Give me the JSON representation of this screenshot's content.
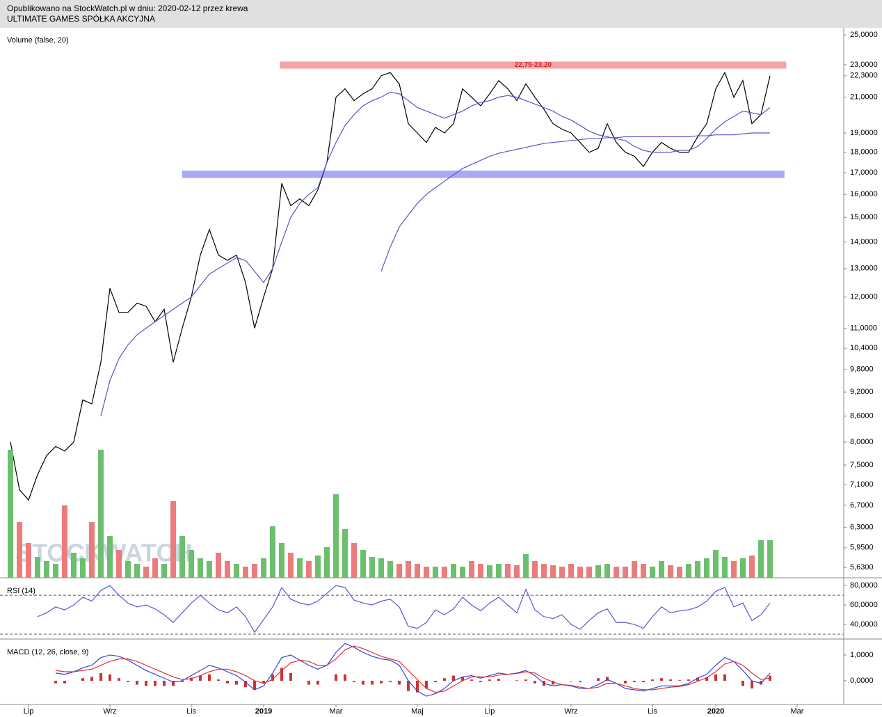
{
  "header": {
    "published": "Opublikowano na StockWatch.pl w dniu: 2020-02-12 przez krewa",
    "company": "ULTIMATE GAMES SPÓŁKA AKCYJNA"
  },
  "watermark": "STOCKWATCH",
  "chart_data": [
    {
      "type": "line",
      "log_scale": true,
      "categories": [
        null,
        null,
        "Lip",
        null,
        null,
        null,
        null,
        null,
        null,
        null,
        null,
        "Wrz",
        null,
        null,
        null,
        null,
        null,
        null,
        null,
        null,
        "Lis",
        null,
        null,
        null,
        null,
        null,
        null,
        null,
        "2019",
        null,
        null,
        null,
        null,
        null,
        null,
        null,
        "Mar",
        null,
        null,
        null,
        null,
        null,
        null,
        null,
        null,
        "Maj",
        null,
        null,
        null,
        null,
        null,
        null,
        null,
        "Lip",
        null,
        null,
        null,
        null,
        null,
        null,
        null,
        null,
        "Wrz",
        null,
        null,
        null,
        null,
        null,
        null,
        null,
        null,
        "Lis",
        null,
        null,
        null,
        null,
        null,
        null,
        "2020",
        null,
        null,
        null,
        null,
        null,
        null,
        null,
        null,
        "Mar",
        null,
        null,
        null,
        null
      ],
      "series": [
        {
          "color": "#000000",
          "values": [
            8.0,
            7.0,
            6.8,
            7.3,
            7.7,
            7.9,
            7.8,
            8.0,
            9.0,
            8.9,
            10.0,
            12.3,
            11.5,
            11.5,
            11.8,
            11.7,
            11.2,
            11.6,
            10.0,
            11.0,
            12.0,
            13.5,
            14.5,
            13.5,
            13.3,
            13.5,
            12.5,
            11.0,
            12.0,
            13.0,
            16.5,
            15.5,
            15.8,
            15.5,
            16.2,
            17.5,
            21.0,
            21.5,
            20.8,
            21.2,
            21.5,
            22.3,
            22.5,
            21.8,
            19.5,
            19.0,
            18.5,
            19.3,
            19.0,
            19.5,
            21.5,
            21.0,
            20.5,
            21.2,
            22.0,
            21.5,
            20.8,
            21.8,
            21.0,
            20.3,
            19.5,
            19.2,
            19.0,
            18.5,
            18.0,
            18.2,
            19.5,
            18.5,
            18.0,
            17.8,
            17.3,
            18.0,
            18.5,
            18.2,
            18.0,
            18.0,
            18.8,
            19.5,
            21.5,
            22.5,
            21.0,
            22.0,
            19.5,
            20.0,
            22.3,
            null,
            null,
            null,
            null,
            null,
            null,
            null
          ]
        },
        {
          "color": "#5555cc",
          "values": [
            null,
            null,
            null,
            null,
            null,
            null,
            null,
            null,
            null,
            null,
            8.6,
            9.5,
            10.1,
            10.5,
            10.8,
            11.0,
            11.2,
            11.4,
            11.6,
            11.8,
            12.0,
            12.4,
            12.8,
            13.0,
            13.2,
            13.4,
            13.3,
            12.9,
            12.5,
            13.0,
            14.0,
            15.0,
            15.6,
            16.0,
            16.3,
            17.5,
            18.5,
            19.4,
            20.0,
            20.5,
            20.8,
            21.0,
            21.3,
            21.2,
            20.8,
            20.4,
            20.2,
            20.0,
            19.8,
            20.0,
            20.2,
            20.5,
            20.7,
            20.8,
            21.0,
            21.1,
            21.0,
            20.8,
            20.6,
            20.4,
            20.2,
            19.9,
            19.7,
            19.4,
            19.1,
            18.9,
            18.8,
            18.7,
            18.6,
            18.3,
            18.1,
            18.0,
            18.0,
            18.0,
            18.1,
            18.1,
            18.3,
            18.7,
            19.2,
            19.6,
            19.9,
            20.2,
            20.1,
            20.0,
            20.4,
            null,
            null,
            null,
            null,
            null,
            null,
            null
          ]
        },
        {
          "color": "#5555cc",
          "values": [
            null,
            null,
            null,
            null,
            null,
            null,
            null,
            null,
            null,
            null,
            null,
            null,
            null,
            null,
            null,
            null,
            null,
            null,
            null,
            null,
            null,
            null,
            null,
            null,
            null,
            null,
            null,
            null,
            null,
            null,
            null,
            null,
            null,
            null,
            null,
            null,
            null,
            null,
            null,
            null,
            null,
            12.9,
            13.8,
            14.6,
            15.1,
            15.6,
            16.0,
            16.3,
            16.6,
            16.9,
            17.2,
            17.4,
            17.6,
            17.8,
            17.95,
            18.05,
            18.15,
            18.25,
            18.35,
            18.45,
            18.5,
            18.55,
            18.6,
            18.65,
            18.7,
            18.7,
            18.75,
            18.75,
            18.8,
            18.8,
            18.8,
            18.8,
            18.8,
            18.8,
            18.8,
            18.8,
            18.85,
            18.85,
            18.9,
            18.9,
            18.9,
            18.95,
            19.0,
            19.0,
            19.0,
            null,
            null,
            null,
            null,
            null,
            null,
            null
          ]
        }
      ],
      "ylim": [
        5.47,
        25.5
      ],
      "yticks": [
        {
          "value": 25,
          "label": "25,0000"
        },
        {
          "value": 23,
          "label": "23,0000"
        },
        {
          "value": 22.3,
          "label": "22,3000"
        },
        {
          "value": 21,
          "label": "21,0000"
        },
        {
          "value": 19,
          "label": "19,0000"
        },
        {
          "value": 18,
          "label": "18,0000"
        },
        {
          "value": 17,
          "label": "17,0000"
        },
        {
          "value": 16,
          "label": "16,0000"
        },
        {
          "value": 15,
          "label": "15,0000"
        },
        {
          "value": 14,
          "label": "14,0000"
        },
        {
          "value": 13,
          "label": "13,0000"
        },
        {
          "value": 12,
          "label": "12,0000"
        },
        {
          "value": 11,
          "label": "11,0000"
        },
        {
          "value": 10.4,
          "label": "10,4000"
        },
        {
          "value": 9.8,
          "label": "9,8000"
        },
        {
          "value": 9.2,
          "label": "9,2000"
        },
        {
          "value": 8.6,
          "label": "8,6000"
        },
        {
          "value": 8,
          "label": "8,0000"
        },
        {
          "value": 7.5,
          "label": "7,5000"
        },
        {
          "value": 7.1,
          "label": "7,1000"
        },
        {
          "value": 6.7,
          "label": "6,7000"
        },
        {
          "value": 6.3,
          "label": "6,3000"
        },
        {
          "value": 5.95,
          "label": "5,9500"
        },
        {
          "value": 5.63,
          "label": "5,6300"
        }
      ],
      "zones": [
        {
          "label": "22,75-23,20",
          "y": [
            22.75,
            23.2
          ],
          "x": [
            29.8,
            85.8
          ],
          "color": "#f4a4a4"
        },
        {
          "y": [
            16.75,
            17.1
          ],
          "x": [
            19,
            85.6
          ],
          "color": "#a9a9f5"
        }
      ]
    },
    {
      "type": "bar",
      "title": "Volume (false, 20)",
      "up_color": "#6cbf6c",
      "down_color": "#ec7c7c",
      "ylim": [
        0,
        395
      ],
      "values": [
        92,
        40,
        25,
        15,
        12,
        10,
        52,
        18,
        14,
        40,
        92,
        30,
        20,
        12,
        10,
        8,
        14,
        10,
        55,
        30,
        20,
        14,
        12,
        18,
        12,
        10,
        8,
        10,
        14,
        37,
        25,
        18,
        14,
        12,
        16,
        22,
        60,
        35,
        25,
        20,
        15,
        14,
        12,
        10,
        12,
        10,
        8,
        8,
        8,
        10,
        8,
        12,
        10,
        9,
        10,
        10,
        9,
        17,
        12,
        10,
        9,
        8,
        10,
        8,
        8,
        9,
        10,
        8,
        8,
        12,
        10,
        8,
        12,
        9,
        8,
        10,
        12,
        14,
        20,
        15,
        12,
        14,
        16,
        27,
        27,
        null,
        null,
        null,
        null,
        null,
        null,
        null
      ]
    },
    {
      "type": "line",
      "title": "RSI (14)",
      "ylim": [
        25,
        88
      ],
      "levels": [
        30,
        70
      ],
      "yticks": [
        {
          "value": 80,
          "label": "80,0000"
        },
        {
          "value": 60,
          "label": "60,0000"
        },
        {
          "value": 40,
          "label": "40,0000"
        }
      ],
      "series": [
        {
          "color": "#5555dd",
          "values": [
            null,
            null,
            null,
            48,
            52,
            58,
            55,
            60,
            68,
            64,
            75,
            80,
            70,
            62,
            58,
            60,
            56,
            50,
            42,
            52,
            62,
            70,
            62,
            55,
            52,
            58,
            48,
            32,
            45,
            58,
            78,
            66,
            62,
            60,
            64,
            72,
            80,
            78,
            65,
            62,
            60,
            64,
            66,
            58,
            38,
            36,
            42,
            55,
            50,
            56,
            68,
            60,
            54,
            62,
            68,
            60,
            52,
            76,
            55,
            48,
            46,
            50,
            40,
            35,
            44,
            52,
            56,
            42,
            42,
            40,
            36,
            48,
            58,
            52,
            54,
            55,
            58,
            64,
            74,
            78,
            58,
            62,
            44,
            50,
            62,
            null,
            null,
            null,
            null,
            null,
            null,
            null
          ]
        }
      ]
    },
    {
      "type": "macd",
      "title": "MACD (12, 26, close, 9)",
      "ylim": [
        -0.92,
        1.62
      ],
      "yticks": [
        {
          "value": 1,
          "label": "1,0000"
        },
        {
          "value": 0,
          "label": "0,0000"
        }
      ],
      "series": [
        {
          "color": "#3344dd",
          "values": [
            null,
            null,
            null,
            null,
            null,
            0.3,
            0.25,
            0.35,
            0.5,
            0.6,
            0.9,
            1.0,
            0.95,
            0.8,
            0.6,
            0.4,
            0.25,
            0.1,
            -0.05,
            0.0,
            0.2,
            0.4,
            0.6,
            0.5,
            0.35,
            0.2,
            -0.05,
            -0.35,
            -0.2,
            0.3,
            0.9,
            1.0,
            0.8,
            0.6,
            0.45,
            0.6,
            1.1,
            1.45,
            1.3,
            1.1,
            0.95,
            0.85,
            0.8,
            0.6,
            0.0,
            -0.4,
            -0.6,
            -0.5,
            -0.3,
            0.0,
            0.15,
            0.2,
            0.1,
            0.2,
            0.3,
            0.25,
            0.3,
            0.4,
            0.2,
            -0.1,
            -0.2,
            -0.15,
            -0.2,
            -0.3,
            -0.3,
            -0.15,
            0.05,
            -0.1,
            -0.3,
            -0.35,
            -0.4,
            -0.3,
            -0.2,
            -0.2,
            -0.2,
            -0.1,
            0.1,
            0.25,
            0.6,
            0.9,
            0.75,
            0.4,
            0.0,
            -0.1,
            0.3,
            null,
            null,
            null,
            null,
            null,
            null,
            null
          ]
        },
        {
          "color": "#dd3333",
          "values": [
            null,
            null,
            null,
            null,
            null,
            0.4,
            0.35,
            0.35,
            0.4,
            0.45,
            0.6,
            0.75,
            0.85,
            0.85,
            0.75,
            0.6,
            0.45,
            0.3,
            0.15,
            0.05,
            0.08,
            0.2,
            0.35,
            0.45,
            0.45,
            0.35,
            0.2,
            0.0,
            -0.1,
            0.05,
            0.4,
            0.7,
            0.8,
            0.75,
            0.6,
            0.6,
            0.85,
            1.2,
            1.35,
            1.25,
            1.1,
            0.95,
            0.85,
            0.75,
            0.4,
            0.05,
            -0.3,
            -0.45,
            -0.4,
            -0.2,
            0.0,
            0.15,
            0.15,
            0.15,
            0.22,
            0.25,
            0.28,
            0.35,
            0.3,
            0.1,
            -0.05,
            -0.15,
            -0.18,
            -0.25,
            -0.3,
            -0.25,
            -0.1,
            -0.1,
            -0.2,
            -0.3,
            -0.35,
            -0.35,
            -0.3,
            -0.25,
            -0.22,
            -0.15,
            -0.02,
            0.12,
            0.35,
            0.65,
            0.75,
            0.6,
            0.3,
            0.05,
            0.1,
            null,
            null,
            null,
            null,
            null,
            null,
            null
          ]
        }
      ],
      "histogram": {
        "color": "#cc3333",
        "values": [
          null,
          null,
          null,
          null,
          null,
          -0.1,
          -0.1,
          0,
          0.1,
          0.15,
          0.3,
          0.25,
          0.1,
          -0.05,
          -0.15,
          -0.2,
          -0.2,
          -0.2,
          -0.2,
          -0.05,
          0.12,
          0.2,
          0.25,
          0.05,
          -0.1,
          -0.15,
          -0.25,
          -0.35,
          -0.1,
          0.25,
          0.5,
          0.3,
          0,
          -0.15,
          -0.15,
          0,
          0.25,
          0.25,
          -0.05,
          -0.15,
          -0.15,
          -0.1,
          -0.05,
          -0.15,
          -0.4,
          -0.45,
          -0.3,
          -0.05,
          0.1,
          0.2,
          0.15,
          0.05,
          -0.05,
          0.05,
          0.08,
          0,
          0.02,
          0.05,
          -0.1,
          -0.2,
          -0.15,
          0,
          -0.02,
          -0.05,
          0,
          0.1,
          0.15,
          0,
          -0.1,
          -0.05,
          -0.05,
          0.05,
          0.1,
          0.05,
          0.02,
          0.05,
          0.12,
          0.13,
          0.25,
          0.25,
          0,
          -0.2,
          -0.3,
          -0.15,
          0.2,
          null,
          null,
          null,
          null,
          null,
          null,
          null
        ]
      }
    }
  ]
}
